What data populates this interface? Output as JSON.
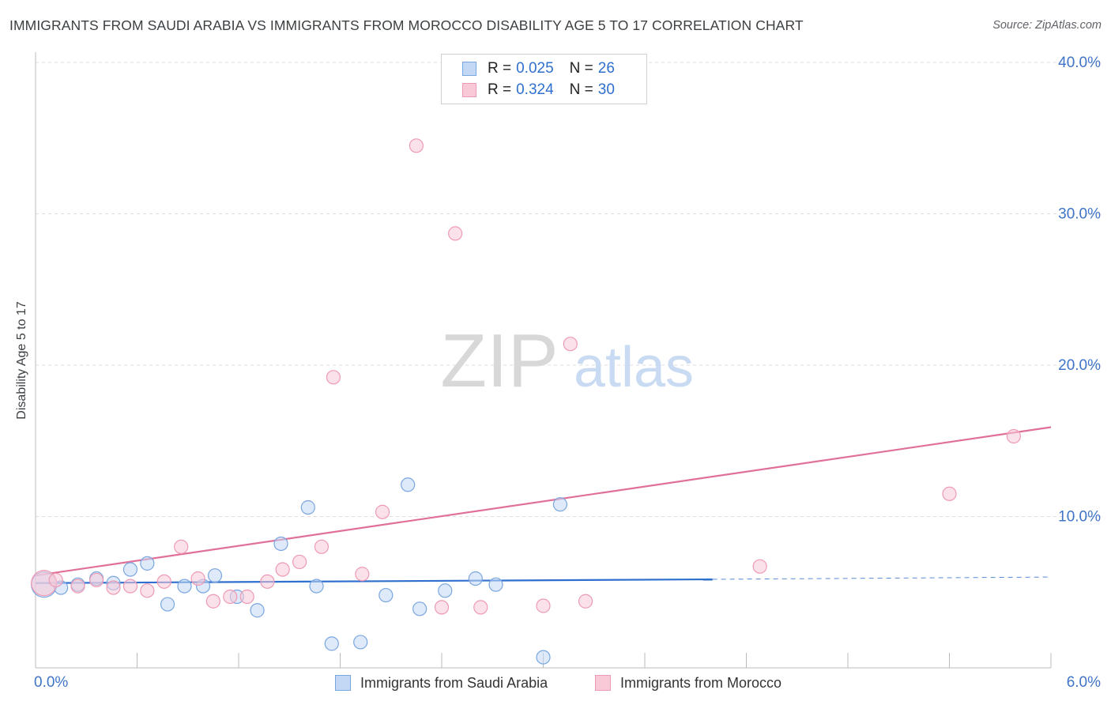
{
  "chart_data": {
    "type": "scatter",
    "title": "IMMIGRANTS FROM SAUDI ARABIA VS IMMIGRANTS FROM MOROCCO DISABILITY AGE 5 TO 17 CORRELATION CHART",
    "source": "Source: ZipAtlas.com",
    "ylabel": "Disability Age 5 to 17",
    "xlabel": "",
    "xlim": [
      0.0,
      6.0
    ],
    "ylim": [
      0.0,
      40.0
    ],
    "x_tick_labels": [
      "0.0%",
      "6.0%"
    ],
    "y_ticks": [
      10,
      20,
      30,
      40
    ],
    "y_tick_labels": [
      "10.0%",
      "20.0%",
      "30.0%",
      "40.0%"
    ],
    "grid": true,
    "watermark": {
      "zip": "ZIP",
      "atlas": "atlas"
    },
    "legend": [
      {
        "r_label": "R =",
        "r_value": "0.025",
        "n_label": "N =",
        "n_value": "26"
      },
      {
        "r_label": "R =",
        "r_value": "0.324",
        "n_label": "N =",
        "n_value": "30"
      }
    ],
    "series": [
      {
        "name": "Immigrants from Saudi Arabia",
        "color": "#7aa6df",
        "fill": "#c3d8f4",
        "line_color": "#2f6fce",
        "trend": {
          "x0": 0.0,
          "y0": 5.6,
          "x1": 4.0,
          "y1": 5.85,
          "dash_to_x": 6.0,
          "dash_to_y": 6.0
        },
        "points": [
          {
            "x": 0.05,
            "y": 5.5,
            "large": true
          },
          {
            "x": 0.15,
            "y": 5.3
          },
          {
            "x": 0.25,
            "y": 5.5
          },
          {
            "x": 0.36,
            "y": 5.9
          },
          {
            "x": 0.46,
            "y": 5.6
          },
          {
            "x": 0.56,
            "y": 6.5
          },
          {
            "x": 0.66,
            "y": 6.9
          },
          {
            "x": 0.78,
            "y": 4.2
          },
          {
            "x": 0.88,
            "y": 5.4
          },
          {
            "x": 0.99,
            "y": 5.4
          },
          {
            "x": 1.06,
            "y": 6.1
          },
          {
            "x": 1.19,
            "y": 4.7
          },
          {
            "x": 1.31,
            "y": 3.8
          },
          {
            "x": 1.45,
            "y": 8.2
          },
          {
            "x": 1.61,
            "y": 10.6
          },
          {
            "x": 1.66,
            "y": 5.4
          },
          {
            "x": 1.75,
            "y": 1.6
          },
          {
            "x": 1.92,
            "y": 1.7
          },
          {
            "x": 2.07,
            "y": 4.8
          },
          {
            "x": 2.2,
            "y": 12.1
          },
          {
            "x": 2.27,
            "y": 3.9
          },
          {
            "x": 2.42,
            "y": 5.1
          },
          {
            "x": 2.6,
            "y": 5.9
          },
          {
            "x": 2.72,
            "y": 5.5
          },
          {
            "x": 3.0,
            "y": 0.7
          },
          {
            "x": 3.1,
            "y": 10.8
          }
        ]
      },
      {
        "name": "Immigrants from Morocco",
        "color": "#ee9ab4",
        "fill": "#f8cad8",
        "line_color": "#e0709a",
        "trend": {
          "x0": 0.0,
          "y0": 6.1,
          "x1": 6.0,
          "y1": 15.9
        },
        "points": [
          {
            "x": 0.05,
            "y": 5.6,
            "large": true
          },
          {
            "x": 0.12,
            "y": 5.8
          },
          {
            "x": 0.25,
            "y": 5.4
          },
          {
            "x": 0.36,
            "y": 5.8
          },
          {
            "x": 0.46,
            "y": 5.3
          },
          {
            "x": 0.56,
            "y": 5.4
          },
          {
            "x": 0.66,
            "y": 5.1
          },
          {
            "x": 0.76,
            "y": 5.7
          },
          {
            "x": 0.86,
            "y": 8.0
          },
          {
            "x": 0.96,
            "y": 5.9
          },
          {
            "x": 1.05,
            "y": 4.4
          },
          {
            "x": 1.15,
            "y": 4.7
          },
          {
            "x": 1.25,
            "y": 4.7
          },
          {
            "x": 1.37,
            "y": 5.7
          },
          {
            "x": 1.46,
            "y": 6.5
          },
          {
            "x": 1.56,
            "y": 7.0
          },
          {
            "x": 1.69,
            "y": 8.0
          },
          {
            "x": 1.76,
            "y": 19.2
          },
          {
            "x": 1.93,
            "y": 6.2
          },
          {
            "x": 2.05,
            "y": 10.3
          },
          {
            "x": 2.25,
            "y": 34.5
          },
          {
            "x": 2.4,
            "y": 4.0
          },
          {
            "x": 2.48,
            "y": 28.7
          },
          {
            "x": 2.63,
            "y": 4.0
          },
          {
            "x": 3.0,
            "y": 4.1
          },
          {
            "x": 3.16,
            "y": 21.4
          },
          {
            "x": 3.25,
            "y": 4.4
          },
          {
            "x": 4.28,
            "y": 6.7
          },
          {
            "x": 5.4,
            "y": 11.5
          },
          {
            "x": 5.78,
            "y": 15.3
          }
        ]
      }
    ]
  },
  "legend_colors": {
    "blue_fill": "#c3d8f4",
    "blue_border": "#7aa6df",
    "pink_fill": "#f8cad8",
    "pink_border": "#ee9ab4"
  }
}
